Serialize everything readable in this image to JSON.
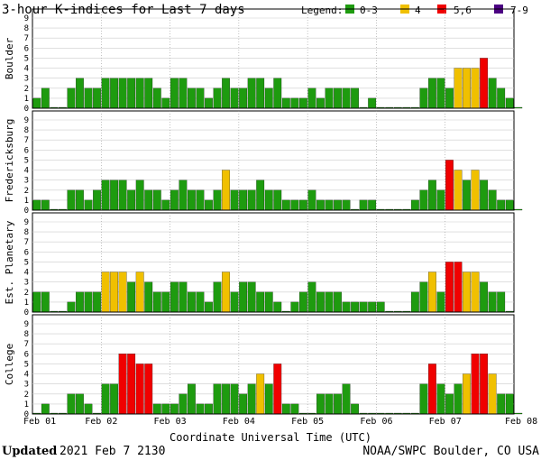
{
  "title": "3-hour K-indices for Last 7 days",
  "legend": {
    "label": "Legend:",
    "items": [
      {
        "label": "0-3",
        "color": "#1e9b0f"
      },
      {
        "label": "4",
        "color": "#f0c000"
      },
      {
        "label": "5,6",
        "color": "#f00000"
      },
      {
        "label": "7-9",
        "color": "#4b0082"
      }
    ]
  },
  "xlabel": "Coordinate Universal Time (UTC)",
  "x_ticks": [
    "Feb 01",
    "Feb 02",
    "Feb 03",
    "Feb 04",
    "Feb 05",
    "Feb 06",
    "Feb 07",
    "Feb 08"
  ],
  "y_ticks": [
    "0",
    "1",
    "2",
    "3",
    "4",
    "5",
    "6",
    "7",
    "8",
    "9"
  ],
  "footer": {
    "updated_label": "Updated",
    "updated_value": "2021 Feb  7 2130",
    "source": "NOAA/SWPC Boulder, CO USA"
  },
  "chart_data": [
    {
      "type": "bar",
      "station": "Boulder",
      "ylim": [
        0,
        9
      ],
      "values": [
        1,
        2,
        0,
        0,
        2,
        3,
        2,
        2,
        3,
        3,
        3,
        3,
        3,
        3,
        2,
        1,
        3,
        3,
        2,
        2,
        1,
        2,
        3,
        2,
        2,
        3,
        3,
        2,
        3,
        1,
        1,
        1,
        2,
        1,
        2,
        2,
        2,
        2,
        0,
        1,
        0,
        0,
        0,
        0,
        0,
        2,
        3,
        3,
        2,
        4,
        4,
        4,
        5,
        3,
        2,
        1,
        0
      ]
    },
    {
      "type": "bar",
      "station": "Fredericksburg",
      "ylim": [
        0,
        9
      ],
      "values": [
        1,
        1,
        0,
        0,
        2,
        2,
        1,
        2,
        3,
        3,
        3,
        2,
        3,
        2,
        2,
        1,
        2,
        3,
        2,
        2,
        1,
        2,
        4,
        2,
        2,
        2,
        3,
        2,
        2,
        1,
        1,
        1,
        2,
        1,
        1,
        1,
        1,
        0,
        1,
        1,
        0,
        0,
        0,
        0,
        1,
        2,
        3,
        2,
        5,
        4,
        3,
        4,
        3,
        2,
        1,
        1,
        0
      ]
    },
    {
      "type": "bar",
      "station": "Est. Planetary",
      "ylim": [
        0,
        9
      ],
      "values": [
        2,
        2,
        0,
        0,
        1,
        2,
        2,
        2,
        4,
        4,
        4,
        3,
        4,
        3,
        2,
        2,
        3,
        3,
        2,
        2,
        1,
        3,
        4,
        2,
        3,
        3,
        2,
        2,
        1,
        0,
        1,
        2,
        3,
        2,
        2,
        2,
        1,
        1,
        1,
        1,
        1,
        0,
        0,
        0,
        2,
        3,
        4,
        2,
        5,
        5,
        4,
        4,
        3,
        2,
        2,
        0
      ]
    },
    {
      "type": "bar",
      "station": "College",
      "ylim": [
        0,
        9
      ],
      "values": [
        0,
        1,
        0,
        0,
        2,
        2,
        1,
        0,
        3,
        3,
        6,
        6,
        5,
        5,
        1,
        1,
        1,
        2,
        3,
        1,
        1,
        3,
        3,
        3,
        2,
        3,
        4,
        3,
        5,
        1,
        1,
        0,
        0,
        2,
        2,
        2,
        3,
        1,
        0,
        0,
        0,
        0,
        0,
        0,
        0,
        3,
        5,
        3,
        2,
        3,
        4,
        6,
        6,
        4,
        2,
        2,
        0
      ]
    }
  ]
}
